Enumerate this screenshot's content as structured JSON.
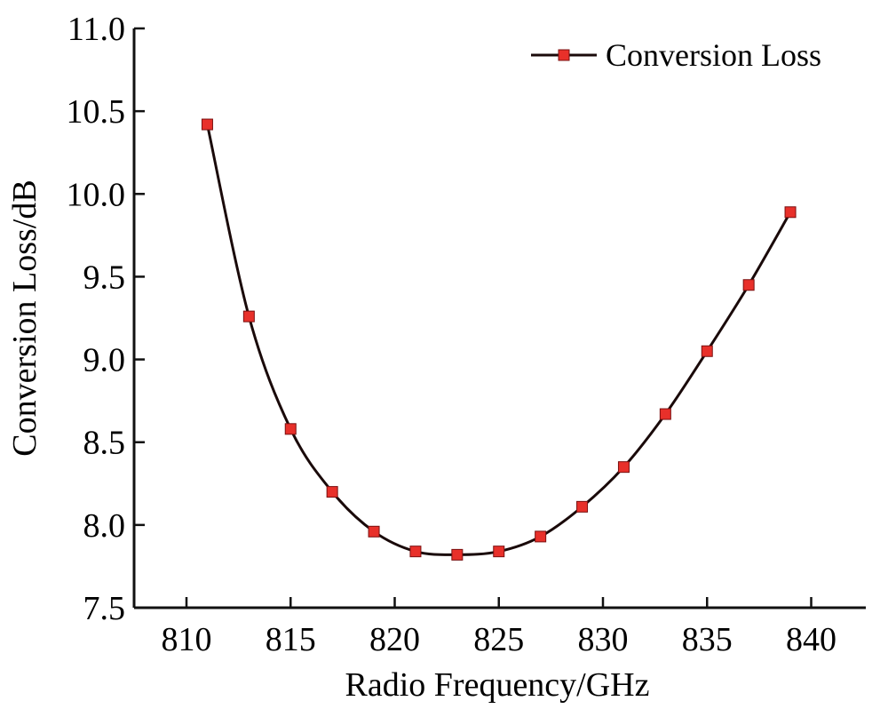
{
  "chart_data": {
    "type": "line",
    "title": "",
    "xlabel": "Radio Frequency/GHz",
    "ylabel": "Conversion Loss/dB",
    "xlim": [
      807.5,
      842.5
    ],
    "ylim": [
      7.5,
      11.0
    ],
    "xticks": [
      810,
      815,
      820,
      825,
      830,
      835,
      840
    ],
    "yticks": [
      "7.5",
      "8.0",
      "8.5",
      "9.0",
      "9.5",
      "10.0",
      "10.5",
      "11.0"
    ],
    "legend_position": "top-right",
    "grid": false,
    "series": [
      {
        "name": "Conversion Loss",
        "color": "#e8302a",
        "line_color": "#1a0a0a",
        "x": [
          811,
          813,
          815,
          817,
          819,
          821,
          823,
          825,
          827,
          829,
          831,
          833,
          835,
          837,
          839
        ],
        "y": [
          10.42,
          9.26,
          8.58,
          8.2,
          7.96,
          7.84,
          7.82,
          7.84,
          7.93,
          8.11,
          8.35,
          8.67,
          9.05,
          9.45,
          9.89
        ]
      }
    ]
  }
}
